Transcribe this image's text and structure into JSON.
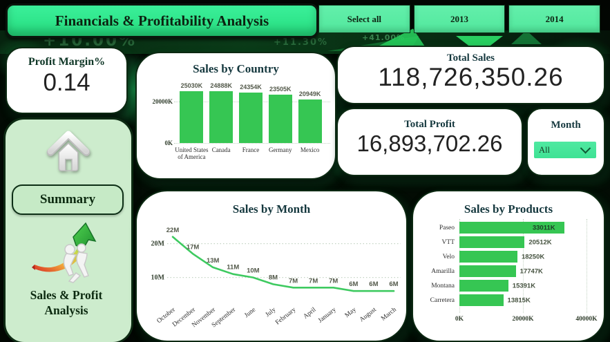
{
  "header": {
    "title": "Financials & Profitability Analysis",
    "slicers": [
      {
        "label": "Select all"
      },
      {
        "label": "2013"
      },
      {
        "label": "2014"
      }
    ]
  },
  "background_texts": [
    "+10.00%",
    "+11.30%",
    "+41.00%"
  ],
  "kpi": {
    "profit_margin": {
      "title": "Profit Margin%",
      "value": "0.14"
    },
    "total_sales": {
      "title": "Total Sales",
      "value": "118,726,350.26"
    },
    "total_profit": {
      "title": "Total Profit",
      "value": "16,893,702.26"
    }
  },
  "sidebar": {
    "summary_label": "Summary",
    "analysis_label": "Sales & Profit Analysis",
    "icons": [
      "home-icon",
      "growth-arrow-icon"
    ]
  },
  "month_filter": {
    "title": "Month",
    "selected_value": "All"
  },
  "colors": {
    "accent_green": "#2ce98b",
    "button_green": "#5aeda6",
    "chart_green": "#36c653",
    "sidebar_green": "#cdeccd",
    "dropdown_green": "#45e69b",
    "card_border": "#0c2912",
    "title_text": "#15383e"
  },
  "chart_data": [
    {
      "id": "sales_by_country",
      "type": "bar",
      "title": "Sales by Country",
      "categories": [
        "United States of America",
        "Canada",
        "France",
        "Germany",
        "Mexico"
      ],
      "values": [
        25030,
        24888,
        24354,
        23505,
        20949
      ],
      "labels": [
        "25030K",
        "24888K",
        "24354K",
        "23505K",
        "20949K"
      ],
      "unit": "K",
      "ylim": [
        0,
        26000
      ],
      "yticks": [
        {
          "value": 0,
          "label": "0K"
        },
        {
          "value": 20000,
          "label": "20000K"
        }
      ],
      "grid": "dotted-horizontal",
      "bar_color": "#36c653"
    },
    {
      "id": "sales_by_month",
      "type": "line",
      "title": "Sales by Month",
      "categories": [
        "October",
        "December",
        "November",
        "September",
        "June",
        "July",
        "February",
        "April",
        "January",
        "May",
        "August",
        "March"
      ],
      "values": [
        22,
        17,
        13,
        11,
        10,
        8,
        7,
        7,
        7,
        6,
        6,
        6
      ],
      "labels": [
        "22M",
        "17M",
        "13M",
        "11M",
        "10M",
        "8M",
        "7M",
        "7M",
        "7M",
        "6M",
        "6M",
        "6M"
      ],
      "unit": "M",
      "ylim": [
        4,
        24
      ],
      "yticks": [
        {
          "value": 20,
          "label": "20M"
        },
        {
          "value": 10,
          "label": "10M"
        }
      ],
      "grid": "dotted-horizontal",
      "line_color": "#3eca60"
    },
    {
      "id": "sales_by_products",
      "type": "hbar",
      "title": "Sales by Products",
      "categories": [
        "Paseo",
        "VTT",
        "Velo",
        "Amarilla",
        "Montana",
        "Carretera"
      ],
      "values": [
        33011,
        20512,
        18250,
        17747,
        15391,
        13815
      ],
      "labels": [
        "33011K",
        "20512K",
        "18250K",
        "17747K",
        "15391K",
        "13815K"
      ],
      "unit": "K",
      "xlim": [
        0,
        40000
      ],
      "xticks": [
        {
          "value": 0,
          "label": "0K"
        },
        {
          "value": 20000,
          "label": "20000K"
        },
        {
          "value": 40000,
          "label": "40000K"
        }
      ],
      "grid": "dotted-vertical",
      "bar_color": "#36c653"
    }
  ]
}
